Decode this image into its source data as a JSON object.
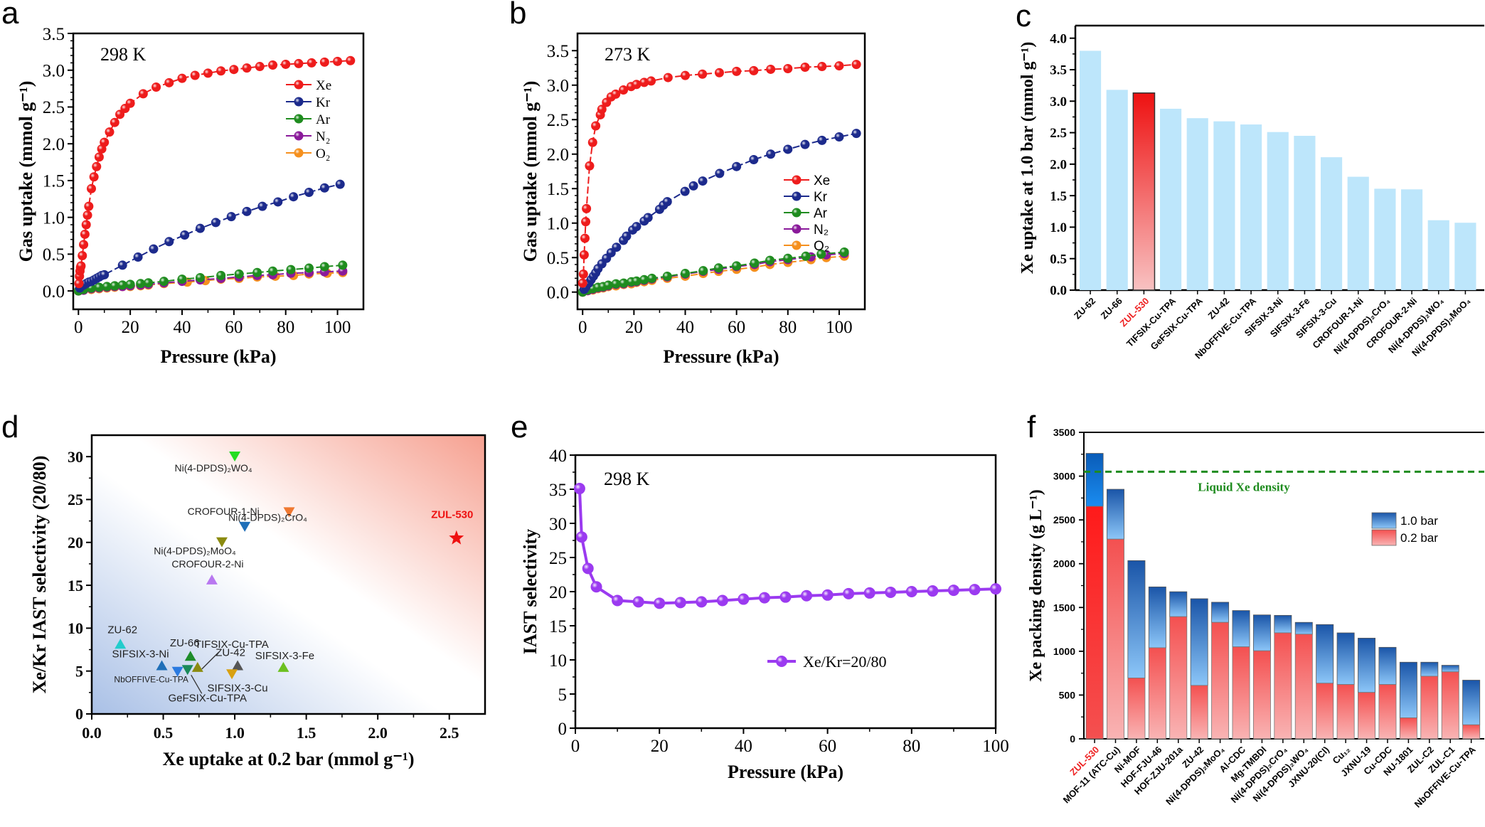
{
  "panels": {
    "a": {
      "letter": "a"
    },
    "b": {
      "letter": "b"
    },
    "c": {
      "letter": "c"
    },
    "d": {
      "letter": "d"
    },
    "e": {
      "letter": "e"
    },
    "f": {
      "letter": "f"
    }
  },
  "chart_data": [
    {
      "id": "a",
      "type": "line",
      "annotation": "298 K",
      "xlabel": "Pressure (kPa)",
      "ylabel": "Gas uptake (mmol g⁻¹)",
      "xlim": [
        -2,
        110
      ],
      "ylim": [
        -0.25,
        3.5
      ],
      "xticks": [
        0,
        20,
        40,
        60,
        80,
        100
      ],
      "yticks": [
        "0.0",
        "0.5",
        "1.0",
        "1.5",
        "2.0",
        "2.5",
        "3.0",
        "3.5"
      ],
      "legend_position": "top-right",
      "series": [
        {
          "name": "Xe",
          "color": "#ee1c1c",
          "x": [
            0.2,
            0.4,
            0.6,
            0.8,
            1,
            1.5,
            2,
            2.5,
            3,
            3.5,
            4,
            5,
            6,
            7,
            8,
            9,
            10,
            12,
            14,
            16,
            18,
            20,
            25,
            30,
            35,
            40,
            45,
            50,
            55,
            60,
            65,
            70,
            75,
            80,
            85,
            90,
            95,
            100,
            105
          ],
          "y": [
            0.1,
            0.2,
            0.27,
            0.32,
            0.34,
            0.48,
            0.63,
            0.77,
            0.9,
            1.03,
            1.15,
            1.39,
            1.55,
            1.69,
            1.82,
            1.93,
            2.02,
            2.16,
            2.29,
            2.4,
            2.48,
            2.55,
            2.68,
            2.77,
            2.83,
            2.89,
            2.93,
            2.96,
            2.99,
            3.01,
            3.03,
            3.05,
            3.07,
            3.08,
            3.09,
            3.1,
            3.11,
            3.12,
            3.13
          ]
        },
        {
          "name": "Kr",
          "color": "#1c2a8c",
          "x": [
            0.5,
            1,
            2,
            3,
            4,
            5,
            6,
            7,
            8,
            9,
            10,
            17,
            23,
            29,
            35,
            41,
            47,
            53,
            59,
            65,
            71,
            77,
            83,
            89,
            95,
            101
          ],
          "y": [
            0.04,
            0.06,
            0.08,
            0.1,
            0.12,
            0.13,
            0.15,
            0.17,
            0.19,
            0.21,
            0.22,
            0.35,
            0.46,
            0.57,
            0.67,
            0.76,
            0.85,
            0.93,
            1.01,
            1.08,
            1.15,
            1.21,
            1.28,
            1.34,
            1.4,
            1.45
          ]
        },
        {
          "name": "Ar",
          "color": "#1f8c1f",
          "x": [
            0,
            2,
            5,
            8,
            11,
            14,
            17,
            20,
            24,
            27,
            33,
            40,
            47,
            55,
            62,
            69,
            75,
            82,
            89,
            95,
            102
          ],
          "y": [
            0,
            0.02,
            0.04,
            0.05,
            0.06,
            0.07,
            0.08,
            0.09,
            0.1,
            0.11,
            0.13,
            0.16,
            0.18,
            0.21,
            0.23,
            0.25,
            0.27,
            0.29,
            0.31,
            0.33,
            0.35
          ]
        },
        {
          "name": "N₂",
          "color": "#8a1a9a",
          "x": [
            0,
            2,
            5,
            8,
            11,
            14,
            17,
            20,
            24,
            27,
            33,
            40,
            47,
            55,
            62,
            69,
            75,
            82,
            89,
            95,
            102
          ],
          "y": [
            0,
            0.01,
            0.03,
            0.04,
            0.05,
            0.06,
            0.06,
            0.07,
            0.08,
            0.09,
            0.11,
            0.13,
            0.15,
            0.17,
            0.19,
            0.21,
            0.22,
            0.24,
            0.25,
            0.26,
            0.27
          ]
        },
        {
          "name": "O₂",
          "color": "#f5901e",
          "x": [
            0,
            2,
            5,
            8,
            11,
            14,
            17,
            20,
            24,
            27,
            33,
            42,
            49,
            55,
            62,
            69,
            76,
            83,
            89,
            96,
            102
          ],
          "y": [
            0,
            0.01,
            0.02,
            0.03,
            0.04,
            0.05,
            0.06,
            0.06,
            0.07,
            0.08,
            0.1,
            0.12,
            0.14,
            0.16,
            0.17,
            0.19,
            0.2,
            0.21,
            0.23,
            0.24,
            0.25
          ]
        }
      ]
    },
    {
      "id": "b",
      "type": "line",
      "annotation": "273 K",
      "xlabel": "Pressure (kPa)",
      "ylabel": "Gas uptake (mmol g⁻¹)",
      "xlim": [
        -2,
        110
      ],
      "ylim": [
        -0.25,
        3.75
      ],
      "xticks": [
        0,
        20,
        40,
        60,
        80,
        100
      ],
      "yticks": [
        "0.0",
        "0.5",
        "1.0",
        "1.5",
        "2.0",
        "2.5",
        "3.0",
        "3.5"
      ],
      "legend_position": "center-right",
      "series": [
        {
          "name": "Xe",
          "color": "#ee1c1c",
          "x": [
            0,
            0.3,
            0.6,
            0.9,
            1.2,
            1.5,
            2.7,
            3.9,
            5.1,
            6.9,
            7.5,
            9.3,
            11.1,
            12.9,
            15.9,
            18.9,
            21,
            24,
            26.7,
            33.3,
            40,
            46.7,
            53.3,
            60,
            66.7,
            73.3,
            80,
            86.7,
            93.3,
            100,
            106.7
          ],
          "y": [
            0.13,
            0.26,
            0.54,
            0.78,
            1.02,
            1.21,
            1.83,
            2.17,
            2.41,
            2.57,
            2.65,
            2.75,
            2.83,
            2.87,
            2.93,
            2.98,
            3.01,
            3.04,
            3.06,
            3.11,
            3.14,
            3.16,
            3.18,
            3.2,
            3.21,
            3.23,
            3.24,
            3.26,
            3.27,
            3.28,
            3.3
          ]
        },
        {
          "name": "Kr",
          "color": "#1c2a8c",
          "x": [
            0.6,
            1.2,
            2.4,
            3.3,
            4.2,
            5.1,
            6,
            7.5,
            9.3,
            11.1,
            13.2,
            15.9,
            17.1,
            19.5,
            21,
            24,
            25.5,
            30,
            31.5,
            33,
            39.9,
            43.2,
            46.8,
            53.4,
            60,
            66.7,
            73.3,
            80,
            86.7,
            93.3,
            100,
            106.7
          ],
          "y": [
            0.04,
            0.07,
            0.13,
            0.18,
            0.23,
            0.28,
            0.34,
            0.41,
            0.49,
            0.57,
            0.65,
            0.75,
            0.81,
            0.9,
            0.95,
            1.03,
            1.08,
            1.2,
            1.26,
            1.31,
            1.46,
            1.54,
            1.61,
            1.72,
            1.82,
            1.92,
            2.0,
            2.07,
            2.14,
            2.2,
            2.25,
            2.3
          ]
        },
        {
          "name": "Ar",
          "color": "#1f8c1f",
          "x": [
            0,
            2,
            4,
            6,
            8,
            10,
            13,
            16,
            19,
            21,
            24,
            27,
            33,
            40,
            47,
            53,
            60,
            67,
            73,
            80,
            87,
            93,
            102
          ],
          "y": [
            0,
            0.03,
            0.05,
            0.07,
            0.08,
            0.1,
            0.12,
            0.13,
            0.15,
            0.16,
            0.18,
            0.2,
            0.23,
            0.27,
            0.31,
            0.35,
            0.38,
            0.42,
            0.46,
            0.49,
            0.52,
            0.55,
            0.58
          ]
        },
        {
          "name": "N₂",
          "color": "#8a1a9a",
          "x": [
            0,
            2,
            4,
            6,
            8,
            10,
            13,
            16,
            19,
            21,
            24,
            27,
            33,
            40,
            47,
            53,
            60,
            67,
            73,
            80,
            89,
            95,
            102
          ],
          "y": [
            0,
            0.02,
            0.04,
            0.06,
            0.07,
            0.09,
            0.11,
            0.12,
            0.14,
            0.15,
            0.17,
            0.19,
            0.22,
            0.26,
            0.3,
            0.33,
            0.37,
            0.4,
            0.44,
            0.47,
            0.51,
            0.54,
            0.56
          ]
        },
        {
          "name": "O₂",
          "color": "#f5901e",
          "x": [
            0,
            2,
            4,
            6,
            8,
            10,
            13,
            16,
            19,
            21,
            24,
            27,
            33,
            40,
            47,
            53,
            60,
            67,
            73,
            80,
            89,
            95,
            102
          ],
          "y": [
            0,
            0.02,
            0.03,
            0.05,
            0.06,
            0.08,
            0.09,
            0.11,
            0.12,
            0.14,
            0.15,
            0.17,
            0.2,
            0.23,
            0.27,
            0.3,
            0.33,
            0.36,
            0.4,
            0.43,
            0.47,
            0.5,
            0.52
          ]
        }
      ]
    },
    {
      "id": "c",
      "type": "bar",
      "ylabel": "Xe uptake at 1.0 bar (mmol g⁻¹)",
      "ylim": [
        0,
        4.2
      ],
      "yticks": [
        "0.0",
        "0.5",
        "1.0",
        "1.5",
        "2.0",
        "2.5",
        "3.0",
        "3.5",
        "4.0"
      ],
      "categories": [
        "ZU-62",
        "ZU-66",
        "ZUL-530",
        "TIFSIX-Cu-TPA",
        "GeFSIX-Cu-TPA",
        "ZU-42",
        "NbOFFIVE-Cu-TPA",
        "SIFSIX-3-Ni",
        "SIFSIX-3-Fe",
        "SIFSIX-3-Cu",
        "CROFOUR-1-Ni",
        "Ni(4-DPDS)₂CrO₄",
        "CROFOUR-2-Ni",
        "Ni(4-DPDS)₂WO₄",
        "Ni(4-DPDS)₂MoO₄"
      ],
      "values": [
        3.8,
        3.18,
        3.13,
        2.88,
        2.73,
        2.68,
        2.63,
        2.51,
        2.45,
        2.11,
        1.8,
        1.61,
        1.6,
        1.11,
        1.07
      ],
      "highlight": "ZUL-530",
      "colors": {
        "bar": "#bde6fb",
        "highlight_top": "#ee1111",
        "highlight_bottom": "#f8c2c2",
        "highlight_label": "#ee2222"
      }
    },
    {
      "id": "d",
      "type": "scatter",
      "xlabel": "Xe uptake at 0.2 bar (mmol g⁻¹)",
      "ylabel": "Xe/Kr IAST selectivity (20/80)",
      "xlim": [
        0,
        2.75
      ],
      "ylim": [
        0,
        32.5
      ],
      "xticks": [
        "0.0",
        "0.5",
        "1.0",
        "1.5",
        "2.0",
        "2.5"
      ],
      "yticks": [
        "0",
        "5",
        "10",
        "15",
        "20",
        "25",
        "30"
      ],
      "points": [
        {
          "label": "Ni(4-DPDS)₂WO₄",
          "x": 1.0,
          "y": 30.1,
          "marker": "triangle-down",
          "color": "#22dd22"
        },
        {
          "label": "Ni(4-DPDS)₂CrO₄",
          "x": 1.38,
          "y": 23.6,
          "marker": "triangle-down",
          "color": "#f07830"
        },
        {
          "label": "CROFOUR-1-Ni",
          "x": 1.07,
          "y": 21.9,
          "marker": "triangle-down",
          "color": "#1f6fb8"
        },
        {
          "label": "Ni(4-DPDS)₂MoO₄",
          "x": 0.91,
          "y": 20.1,
          "marker": "triangle-down",
          "color": "#8b8b10"
        },
        {
          "label": "CROFOUR-2-Ni",
          "x": 0.84,
          "y": 15.6,
          "marker": "triangle-up",
          "color": "#b878f0"
        },
        {
          "label": "ZU-62",
          "x": 0.2,
          "y": 8.1,
          "marker": "triangle-up",
          "color": "#22cccc"
        },
        {
          "label": "ZU-66",
          "x": 0.69,
          "y": 6.7,
          "marker": "triangle-up",
          "color": "#1e8c2a"
        },
        {
          "label": "SIFSIX-3-Ni",
          "x": 0.49,
          "y": 5.6,
          "marker": "triangle-up",
          "color": "#1f6fb8"
        },
        {
          "label": "NbOFFIVE-Cu-TPA",
          "x": 0.6,
          "y": 5.0,
          "marker": "triangle-down",
          "color": "#2a7ae0"
        },
        {
          "label": "GeFSIX-Cu-TPA",
          "x": 0.67,
          "y": 5.2,
          "marker": "triangle-down",
          "color": "#1a8a5a"
        },
        {
          "label": "TIFSIX-Cu-TPA",
          "x": 0.74,
          "y": 5.4,
          "marker": "triangle-up",
          "color": "#8b8b10"
        },
        {
          "label": "ZU-42",
          "x": 1.02,
          "y": 5.6,
          "marker": "triangle-up",
          "color": "#555555"
        },
        {
          "label": "SIFSIX-3-Cu",
          "x": 0.98,
          "y": 4.7,
          "marker": "triangle-down",
          "color": "#d8a010"
        },
        {
          "label": "SIFSIX-3-Fe",
          "x": 1.34,
          "y": 5.4,
          "marker": "triangle-up",
          "color": "#6cc020"
        },
        {
          "label": "ZUL-530",
          "x": 2.55,
          "y": 20.5,
          "marker": "star",
          "color": "#ee1111"
        }
      ]
    },
    {
      "id": "e",
      "type": "line",
      "annotation": "298 K",
      "xlabel": "Pressure (kPa)",
      "ylabel": "IAST selectivity",
      "xlim": [
        0,
        100
      ],
      "ylim": [
        0,
        40
      ],
      "xticks": [
        0,
        20,
        40,
        60,
        80,
        100
      ],
      "yticks": [
        "0",
        "5",
        "10",
        "15",
        "20",
        "25",
        "30",
        "35",
        "40"
      ],
      "legend_position": "center-right",
      "series": [
        {
          "name": "Xe/Kr=20/80",
          "color": "#9b3af0",
          "x": [
            1,
            1.5,
            3,
            5,
            10,
            15,
            20,
            25,
            30,
            35,
            40,
            45,
            50,
            55,
            60,
            65,
            70,
            75,
            80,
            85,
            90,
            95,
            100
          ],
          "y": [
            35.1,
            28.0,
            23.4,
            20.7,
            18.7,
            18.5,
            18.3,
            18.4,
            18.5,
            18.7,
            18.9,
            19.1,
            19.2,
            19.4,
            19.5,
            19.7,
            19.8,
            19.9,
            20.0,
            20.1,
            20.2,
            20.3,
            20.4
          ]
        }
      ]
    },
    {
      "id": "f",
      "type": "bar",
      "stacked": true,
      "ylabel": "Xe packing density (g L⁻¹)",
      "ylim": [
        0,
        3500
      ],
      "yticks": [
        "0",
        "500",
        "1000",
        "1500",
        "2000",
        "2500",
        "3000",
        "3500"
      ],
      "reference_line": {
        "label": "Liquid Xe density",
        "value": 3050,
        "color": "#1f8c1f"
      },
      "legend_position": "top-right",
      "categories": [
        "ZUL-530",
        "MOF-11 (ATC-Cu)",
        "Ni-MOF",
        "HOF-FJU-46",
        "HOF-ZJU-201a",
        "ZU-42",
        "Ni(4-DPDS)₂MoO₄",
        "Al-CDC",
        "Mg-TMBDI",
        "Ni(4-DPDS)₂CrO₄",
        "Ni(4-DPDS)₂WO₄",
        "JXNU-20(Cl)",
        "Cu₁₂",
        "JXNU-19",
        "Cu-CDC",
        "NU-1801",
        "ZUL-C2",
        "ZUL-C1",
        "NbOFFIVE-Cu-TPA"
      ],
      "series": [
        {
          "name": "1.0 bar",
          "values": [
            3260,
            2850,
            2035,
            1735,
            1680,
            1600,
            1560,
            1465,
            1415,
            1410,
            1330,
            1305,
            1210,
            1150,
            1045,
            875,
            875,
            840,
            670
          ]
        },
        {
          "name": "0.2 bar",
          "values": [
            2655,
            2280,
            695,
            1040,
            1395,
            610,
            1330,
            1050,
            1005,
            1210,
            1195,
            635,
            620,
            530,
            620,
            240,
            715,
            765,
            160
          ]
        }
      ],
      "highlight": "ZUL-530",
      "colors": {
        "top_dark": "#1a55a8",
        "top_light": "#8cc6f8",
        "bottom_dark": "#f45050",
        "bottom_light": "#f9b4b4",
        "highlight_label": "#ee2222"
      }
    }
  ]
}
